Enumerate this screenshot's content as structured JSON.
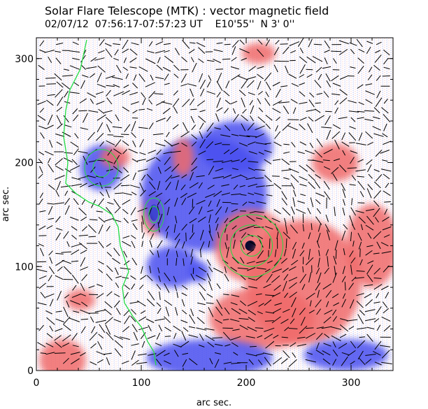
{
  "header": {
    "title": "Solar Flare Telescope (MTK) : vector magnetic field",
    "subtitle": "02/07/12  07:56:17-07:57:23 UT    E10'55''  N 3' 0''"
  },
  "colors": {
    "positive": "#f06a6a",
    "negative": "#4a4ff0",
    "contour": "#22dd44",
    "background": "#ffffff",
    "axis": "#000000"
  },
  "chart_data": {
    "type": "heatmap",
    "title": "Solar Flare Telescope (MTK) : vector magnetic field",
    "xlabel": "arc sec.",
    "ylabel": "arc sec.",
    "xlim": [
      0,
      340
    ],
    "ylim": [
      0,
      320
    ],
    "x_ticks": [
      0,
      100,
      200,
      300
    ],
    "y_ticks": [
      0,
      100,
      200,
      300
    ],
    "features": [
      {
        "name": "positive-spot-left",
        "polarity": "positive",
        "x": 112,
        "y": 150,
        "rx": 12,
        "ry": 20
      },
      {
        "name": "negative-core-left",
        "polarity": "negative",
        "x": 112,
        "y": 152,
        "rx": 4,
        "ry": 8
      },
      {
        "name": "negative-spot-upper-left",
        "polarity": "negative",
        "x": 62,
        "y": 195,
        "rx": 20,
        "ry": 22
      },
      {
        "name": "positive-patch-upper-left",
        "polarity": "positive",
        "x": 75,
        "y": 205,
        "rx": 14,
        "ry": 10
      },
      {
        "name": "negative-plage-center",
        "polarity": "negative",
        "x": 160,
        "y": 170,
        "rx": 60,
        "ry": 55
      },
      {
        "name": "negative-plage-upper",
        "polarity": "negative",
        "x": 190,
        "y": 215,
        "rx": 35,
        "ry": 25
      },
      {
        "name": "positive-spot-right",
        "polarity": "positive",
        "x": 205,
        "y": 120,
        "rx": 35,
        "ry": 35
      },
      {
        "name": "negative-core-right",
        "polarity": "negative",
        "x": 204,
        "y": 120,
        "rx": 5,
        "ry": 5
      },
      {
        "name": "positive-plage-right",
        "polarity": "positive",
        "x": 255,
        "y": 85,
        "rx": 55,
        "ry": 60
      },
      {
        "name": "positive-plage-lower",
        "polarity": "positive",
        "x": 215,
        "y": 50,
        "rx": 50,
        "ry": 30
      },
      {
        "name": "positive-patch-far-right",
        "polarity": "positive",
        "x": 320,
        "y": 120,
        "rx": 25,
        "ry": 40
      },
      {
        "name": "positive-patch-top-right",
        "polarity": "positive",
        "x": 285,
        "y": 200,
        "rx": 22,
        "ry": 18
      },
      {
        "name": "positive-patch-top",
        "polarity": "positive",
        "x": 212,
        "y": 305,
        "rx": 16,
        "ry": 10
      },
      {
        "name": "positive-patch-lower-left",
        "polarity": "positive",
        "x": 25,
        "y": 10,
        "rx": 22,
        "ry": 20
      },
      {
        "name": "negative-patch-bottom",
        "polarity": "negative",
        "x": 165,
        "y": 12,
        "rx": 60,
        "ry": 18
      },
      {
        "name": "negative-patch-bottom-right",
        "polarity": "negative",
        "x": 295,
        "y": 15,
        "rx": 40,
        "ry": 15
      },
      {
        "name": "negative-patch-lower-center",
        "polarity": "negative",
        "x": 130,
        "y": 100,
        "rx": 25,
        "ry": 20
      },
      {
        "name": "negative-patch-small",
        "polarity": "negative",
        "x": 155,
        "y": 95,
        "rx": 10,
        "ry": 10
      },
      {
        "name": "positive-patch-left-mid",
        "polarity": "positive",
        "x": 42,
        "y": 68,
        "rx": 14,
        "ry": 10
      },
      {
        "name": "positive-patch-upper",
        "polarity": "positive",
        "x": 140,
        "y": 205,
        "rx": 10,
        "ry": 18
      }
    ],
    "neutral_line": [
      [
        48,
        318
      ],
      [
        42,
        290
      ],
      [
        32,
        270
      ],
      [
        28,
        250
      ],
      [
        26,
        225
      ],
      [
        30,
        200
      ],
      [
        28,
        180
      ],
      [
        38,
        170
      ],
      [
        50,
        162
      ],
      [
        60,
        158
      ],
      [
        72,
        150
      ],
      [
        78,
        138
      ],
      [
        80,
        120
      ],
      [
        84,
        108
      ],
      [
        88,
        95
      ],
      [
        82,
        80
      ],
      [
        84,
        65
      ],
      [
        92,
        52
      ],
      [
        100,
        42
      ],
      [
        106,
        28
      ],
      [
        112,
        18
      ],
      [
        114,
        5
      ]
    ]
  }
}
